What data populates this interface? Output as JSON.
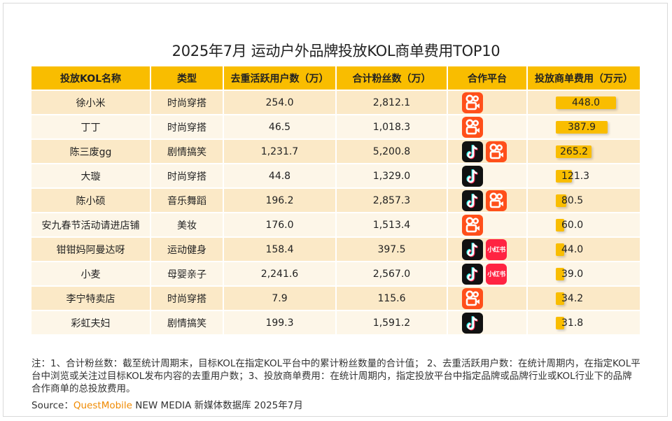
{
  "title": "2025年7月 运动户外品牌投放KOL商单费用TOP10",
  "columns": [
    "投放KOL名称",
    "类型",
    "去重活跃用户数（万）",
    "合计粉丝数（万）",
    "合作平台",
    "投放商单费用（万元）"
  ],
  "platform_names": {
    "kuaishou": "快手",
    "douyin": "抖音",
    "xhs": "小红书"
  },
  "xhs_icon_text": "小红书",
  "colors": {
    "header": "#f9bd00",
    "row_odd": "#fbe9c7",
    "row_even": "#fdf6e8",
    "bar": "#f9bd00",
    "kuaishou": "#ff4f1a",
    "douyin": "#111111",
    "xhs": "#ff2442",
    "brand": "#f08a00"
  },
  "rows": [
    {
      "name": "徐小米",
      "type": "时尚穿搭",
      "active_users": "254.0",
      "fans": "2,812.1",
      "platforms": [
        "kuaishou"
      ],
      "fee": "448.0"
    },
    {
      "name": "丁丁",
      "type": "时尚穿搭",
      "active_users": "46.5",
      "fans": "1,018.3",
      "platforms": [
        "kuaishou"
      ],
      "fee": "387.9"
    },
    {
      "name": "陈三废gg",
      "type": "剧情搞笑",
      "active_users": "1,231.7",
      "fans": "5,200.8",
      "platforms": [
        "douyin",
        "kuaishou"
      ],
      "fee": "265.2"
    },
    {
      "name": "大璇",
      "type": "时尚穿搭",
      "active_users": "44.8",
      "fans": "1,329.0",
      "platforms": [
        "douyin"
      ],
      "fee": "121.3"
    },
    {
      "name": "陈小硕",
      "type": "音乐舞蹈",
      "active_users": "196.2",
      "fans": "2,857.3",
      "platforms": [
        "douyin",
        "kuaishou"
      ],
      "fee": "80.5"
    },
    {
      "name": "安九春节活动请进店铺",
      "type": "美妆",
      "active_users": "176.0",
      "fans": "1,513.4",
      "platforms": [
        "kuaishou"
      ],
      "fee": "60.0"
    },
    {
      "name": "钳钳妈阿曼达呀",
      "type": "运动健身",
      "active_users": "158.4",
      "fans": "397.5",
      "platforms": [
        "douyin",
        "xhs"
      ],
      "fee": "44.0"
    },
    {
      "name": "小麦",
      "type": "母婴亲子",
      "active_users": "2,241.6",
      "fans": "2,567.0",
      "platforms": [
        "douyin",
        "xhs"
      ],
      "fee": "39.0"
    },
    {
      "name": "李宁特卖店",
      "type": "时尚穿搭",
      "active_users": "7.9",
      "fans": "115.6",
      "platforms": [
        "kuaishou"
      ],
      "fee": "34.2"
    },
    {
      "name": "彩虹夫妇",
      "type": "剧情搞笑",
      "active_users": "199.3",
      "fans": "1,591.2",
      "platforms": [
        "douyin"
      ],
      "fee": "31.8"
    }
  ],
  "chart_data": {
    "type": "bar",
    "categories": [
      "徐小米",
      "丁丁",
      "陈三废gg",
      "大璇",
      "陈小硕",
      "安九春节活动请进店铺",
      "钳钳妈阿曼达呀",
      "小麦",
      "李宁特卖店",
      "彩虹夫妇"
    ],
    "values": [
      448.0,
      387.9,
      265.2,
      121.3,
      80.5,
      60.0,
      44.0,
      39.0,
      34.2,
      31.8
    ],
    "title": "2025年7月 运动户外品牌投放KOL商单费用TOP10",
    "xlabel": "",
    "ylabel": "投放商单费用（万元）"
  },
  "note": "注：1、合计粉丝数：截至统计周期末，目标KOL在指定KOL平台中的累计粉丝数量的合计值； 2、去重活跃用户数：在统计周期内，在指定KOL平台中浏览或关注过目标KOL发布内容的去重用户数；3、投放商单费用：在统计周期内，指定投放平台中指定品牌或品牌行业或KOL行业下的品牌合作商单的总投放费用。",
  "source": {
    "prefix": "Source：",
    "brand": "QuestMobile",
    "suffix": " NEW MEDIA 新媒体数据库 2025年7月"
  }
}
